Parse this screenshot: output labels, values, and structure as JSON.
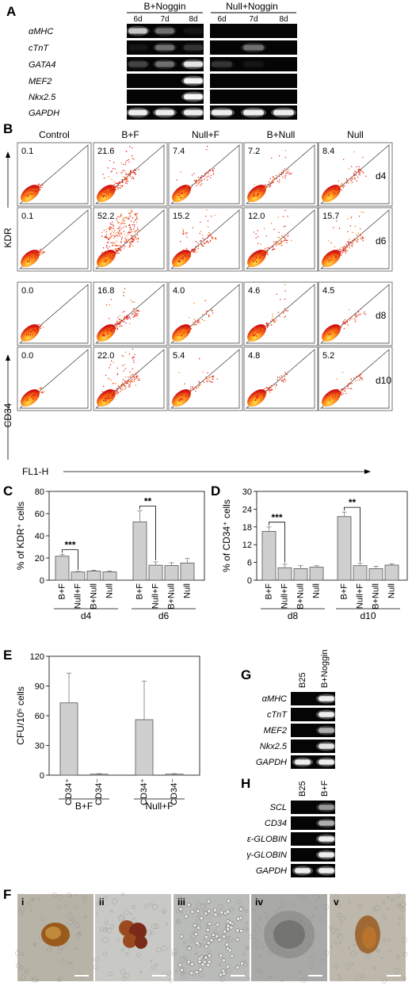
{
  "panels": {
    "A": {
      "label": "A",
      "group_left": "B+Noggin",
      "group_right": "Null+Noggin",
      "days": [
        "6d",
        "7d",
        "8d"
      ],
      "genes": [
        "αMHC",
        "cTnT",
        "GATA4",
        "MEF2",
        "Nkx2.5",
        "GAPDH"
      ],
      "band_intensity": {
        "left": [
          [
            0.7,
            0.35,
            0.05
          ],
          [
            0.05,
            0.35,
            0.15
          ],
          [
            0.2,
            0.35,
            0.85
          ],
          [
            0.0,
            0.0,
            0.95
          ],
          [
            0.0,
            0.0,
            0.95
          ],
          [
            0.9,
            0.9,
            0.9
          ]
        ],
        "right": [
          [
            0.0,
            0.0,
            0.0
          ],
          [
            0.0,
            0.35,
            0.0
          ],
          [
            0.15,
            0.05,
            0.0
          ],
          [
            0.0,
            0.0,
            0.0
          ],
          [
            0.0,
            0.0,
            0.0
          ],
          [
            0.9,
            0.9,
            0.9
          ]
        ]
      }
    },
    "B": {
      "label": "B",
      "conditions": [
        "Control",
        "B+F",
        "Null+F",
        "B+Null",
        "Null"
      ],
      "days": [
        "d4",
        "d6",
        "d8",
        "d10"
      ],
      "y_axis_top": "KDR",
      "y_axis_bottom": "CD34",
      "x_axis": "FL1-H",
      "values": [
        [
          "0.1",
          "21.6",
          "7.4",
          "7.2",
          "8.4"
        ],
        [
          "0.1",
          "52.2",
          "15.2",
          "12.0",
          "15.7"
        ],
        [
          "0.0",
          "16.8",
          "4.0",
          "4.6",
          "4.5"
        ],
        [
          "0.0",
          "22.0",
          "5.4",
          "4.8",
          "5.2"
        ]
      ]
    },
    "C": {
      "label": "C"
    },
    "D": {
      "label": "D"
    },
    "E": {
      "label": "E"
    },
    "G": {
      "label": "G",
      "columns": [
        "B25",
        "B+Noggin"
      ],
      "genes": [
        "αMHC",
        "cTnT",
        "MEF2",
        "Nkx2.5",
        "GAPDH"
      ],
      "band_intensity": [
        [
          0.0,
          0.9
        ],
        [
          0.0,
          0.9
        ],
        [
          0.0,
          0.6
        ],
        [
          0.0,
          0.85
        ],
        [
          0.9,
          0.9
        ]
      ]
    },
    "H": {
      "label": "H",
      "columns": [
        "B25",
        "B+F"
      ],
      "genes": [
        "SCL",
        "CD34",
        "ε-GLOBIN",
        "γ-GLOBIN",
        "GAPDH"
      ],
      "band_intensity": [
        [
          0.0,
          0.5
        ],
        [
          0.0,
          0.6
        ],
        [
          0.0,
          0.9
        ],
        [
          0.0,
          0.9
        ],
        [
          0.9,
          0.9
        ]
      ]
    },
    "F": {
      "label": "F",
      "images": [
        "i",
        "ii",
        "iii",
        "iv",
        "v"
      ]
    }
  },
  "chart_data": [
    {
      "panel": "C",
      "type": "bar",
      "ylabel": "% of KDR⁺ cells",
      "ylim": [
        0,
        80
      ],
      "yticks": [
        0,
        20,
        40,
        60,
        80
      ],
      "groups": [
        "d4",
        "d6"
      ],
      "categories": [
        "B+F",
        "Null+F",
        "B+Null",
        "Null"
      ],
      "values": [
        [
          21.6,
          7.4,
          8.2,
          7.5
        ],
        [
          52.5,
          13.5,
          13.2,
          15.5
        ]
      ],
      "errors": [
        [
          1.5,
          0.5,
          0.8,
          0.6
        ],
        [
          10,
          3,
          2.5,
          4
        ]
      ],
      "significance": [
        {
          "group": "d4",
          "label": "***"
        },
        {
          "group": "d6",
          "label": "**"
        }
      ]
    },
    {
      "panel": "D",
      "type": "bar",
      "ylabel": "% of CD34⁺ cells",
      "ylim": [
        0,
        30
      ],
      "yticks": [
        0,
        6,
        12,
        18,
        24,
        30
      ],
      "groups": [
        "d8",
        "d10"
      ],
      "categories": [
        "B+F",
        "Null+F",
        "B+Null",
        "Null"
      ],
      "values": [
        [
          16.5,
          4.2,
          3.9,
          4.4
        ],
        [
          21.5,
          4.9,
          3.9,
          5.1
        ]
      ],
      "errors": [
        [
          1.5,
          1.2,
          1.0,
          0.5
        ],
        [
          1.5,
          0.8,
          0.8,
          0.4
        ]
      ],
      "significance": [
        {
          "group": "d8",
          "label": "***"
        },
        {
          "group": "d10",
          "label": "**"
        }
      ]
    },
    {
      "panel": "E",
      "type": "bar",
      "ylabel": "CFU/10⁵ cells",
      "ylim": [
        0,
        120
      ],
      "yticks": [
        0,
        30,
        60,
        90,
        120
      ],
      "groups": [
        "B+F",
        "Null+F"
      ],
      "categories": [
        "CD34⁺",
        "CD34⁻"
      ],
      "values": [
        [
          73,
          1
        ],
        [
          56,
          1
        ]
      ],
      "errors": [
        [
          30,
          0.5
        ],
        [
          39,
          0.5
        ]
      ]
    }
  ]
}
